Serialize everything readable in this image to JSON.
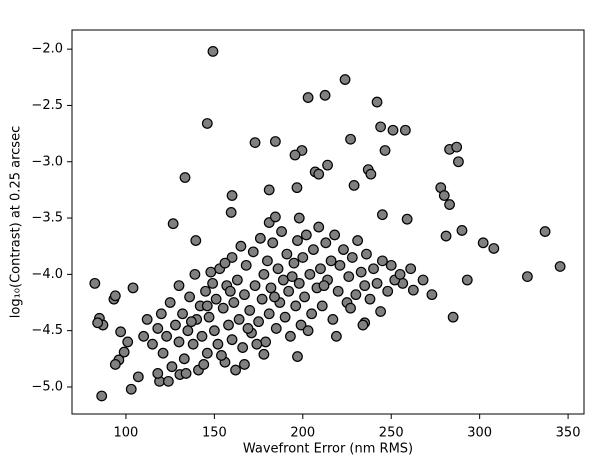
{
  "chart_data": {
    "type": "scatter",
    "x_label": "Wavefront Error (nm RMS)",
    "y_label": "log₁₀(Contrast) at 0.25 arcsec",
    "color": "#808080",
    "edge_color": "#000000",
    "xlim": [
      69.5,
      359
    ],
    "ylim": [
      -5.24,
      -1.83
    ],
    "xticks": [
      100,
      150,
      200,
      250,
      300,
      350
    ],
    "yticks": [
      {
        "value": -5,
        "label": "−5.0"
      },
      {
        "value": -4.5,
        "label": "−4.5"
      },
      {
        "value": -4,
        "label": "−4.0"
      },
      {
        "value": -3.5,
        "label": "−3.5"
      },
      {
        "value": -3,
        "label": "−3.0"
      },
      {
        "value": -2.5,
        "label": "−2.5"
      },
      {
        "value": -2,
        "label": "−2.0"
      }
    ],
    "grid": false,
    "x": [
      149.2,
      223.9,
      203,
      212.6,
      242,
      146,
      244,
      251,
      258,
      227,
      173,
      184.5,
      199.5,
      195.6,
      246.5,
      283,
      287,
      288,
      133.4,
      214,
      207,
      209,
      237,
      238.5,
      196.7,
      181,
      229,
      278,
      280,
      160,
      283,
      159.5,
      245,
      259,
      126.7,
      181,
      184.5,
      198,
      290,
      281,
      302,
      308,
      337,
      139.5,
      345.5,
      327,
      82.4,
      293,
      273,
      268,
      261,
      262.5,
      256.5,
      285,
      85,
      87,
      84,
      93.2,
      94,
      104,
      97,
      101,
      99,
      96,
      94,
      86.3,
      103,
      107,
      119,
      130.5,
      167,
      178,
      197,
      244,
      235,
      110,
      112,
      115,
      118,
      120,
      121,
      123,
      125,
      126,
      128,
      130,
      130,
      132,
      133,
      135,
      136,
      138,
      139,
      140,
      141,
      142,
      143,
      145,
      146,
      147,
      148,
      150,
      151,
      152,
      153,
      155,
      156,
      157,
      158,
      160,
      160,
      161,
      163,
      164,
      165,
      166,
      167,
      168,
      170,
      171,
      172,
      173,
      175,
      176,
      177,
      178,
      179,
      180,
      181,
      182,
      183,
      185,
      186,
      187,
      188,
      189,
      190,
      191,
      192,
      193,
      195,
      196,
      197,
      198,
      199,
      200,
      201,
      202,
      204,
      205,
      206,
      208,
      209,
      210,
      211,
      213,
      214,
      216,
      217,
      218,
      220,
      221,
      223,
      225,
      226,
      228,
      230,
      231,
      233,
      235,
      236,
      238,
      240,
      242,
      245,
      248,
      250,
      252,
      255,
      118,
      124,
      134,
      144,
      154,
      162,
      137,
      149,
      159,
      169,
      174,
      184,
      194,
      203,
      212,
      219,
      227,
      234,
      146,
      156
    ],
    "y": [
      -2.02,
      -2.27,
      -2.43,
      -2.41,
      -2.47,
      -2.66,
      -2.69,
      -2.72,
      -2.72,
      -2.8,
      -2.83,
      -2.82,
      -2.9,
      -2.94,
      -2.9,
      -2.89,
      -2.87,
      -3.0,
      -3.14,
      -3.03,
      -3.09,
      -3.11,
      -3.07,
      -3.11,
      -3.23,
      -3.25,
      -3.21,
      -3.23,
      -3.3,
      -3.3,
      -3.38,
      -3.45,
      -3.47,
      -3.51,
      -3.55,
      -3.54,
      -3.49,
      -3.5,
      -3.61,
      -3.66,
      -3.72,
      -3.77,
      -3.62,
      -3.7,
      -3.93,
      -4.02,
      -4.08,
      -4.05,
      -4.18,
      -4.05,
      -3.95,
      -4.14,
      -4.08,
      -4.38,
      -4.39,
      -4.45,
      -4.43,
      -4.22,
      -4.19,
      -4.12,
      -4.51,
      -4.6,
      -4.69,
      -4.76,
      -4.8,
      -5.08,
      -5.02,
      -4.91,
      -4.95,
      -4.89,
      -4.8,
      -4.71,
      -4.73,
      -4.33,
      -4.43,
      -4.55,
      -4.4,
      -4.62,
      -4.48,
      -4.35,
      -4.7,
      -4.55,
      -4.25,
      -4.82,
      -4.45,
      -4.1,
      -4.6,
      -4.35,
      -4.75,
      -4.5,
      -4.2,
      -4.62,
      -4.0,
      -4.4,
      -4.85,
      -4.28,
      -4.55,
      -4.15,
      -4.7,
      -4.38,
      -3.98,
      -4.5,
      -4.22,
      -4.62,
      -3.95,
      -4.3,
      -4.78,
      -4.1,
      -4.45,
      -3.85,
      -4.58,
      -4.25,
      -4.05,
      -4.4,
      -3.75,
      -4.65,
      -4.18,
      -3.92,
      -4.32,
      -4.52,
      -3.8,
      -4.1,
      -4.42,
      -3.68,
      -4.22,
      -4.0,
      -4.6,
      -3.88,
      -4.35,
      -4.12,
      -3.72,
      -4.48,
      -3.95,
      -4.25,
      -3.62,
      -4.05,
      -4.38,
      -3.82,
      -4.15,
      -4.55,
      -3.9,
      -4.28,
      -3.7,
      -4.08,
      -4.45,
      -3.85,
      -4.2,
      -3.65,
      -4.0,
      -4.35,
      -3.78,
      -4.12,
      -3.58,
      -3.95,
      -4.28,
      -3.72,
      -4.05,
      -3.88,
      -4.4,
      -3.65,
      -4.15,
      -3.92,
      -3.78,
      -4.25,
      -4.02,
      -3.85,
      -4.18,
      -3.7,
      -3.98,
      -4.1,
      -3.82,
      -4.22,
      -3.95,
      -4.08,
      -3.88,
      -4.15,
      -3.92,
      -4.05,
      -4.0,
      -4.88,
      -4.95,
      -4.88,
      -4.8,
      -4.72,
      -4.85,
      -4.42,
      -4.08,
      -4.15,
      -4.48,
      -4.62,
      -4.2,
      -4.02,
      -4.5,
      -4.1,
      -4.55,
      -4.3,
      -4.45,
      -4.28,
      -3.9
    ]
  }
}
